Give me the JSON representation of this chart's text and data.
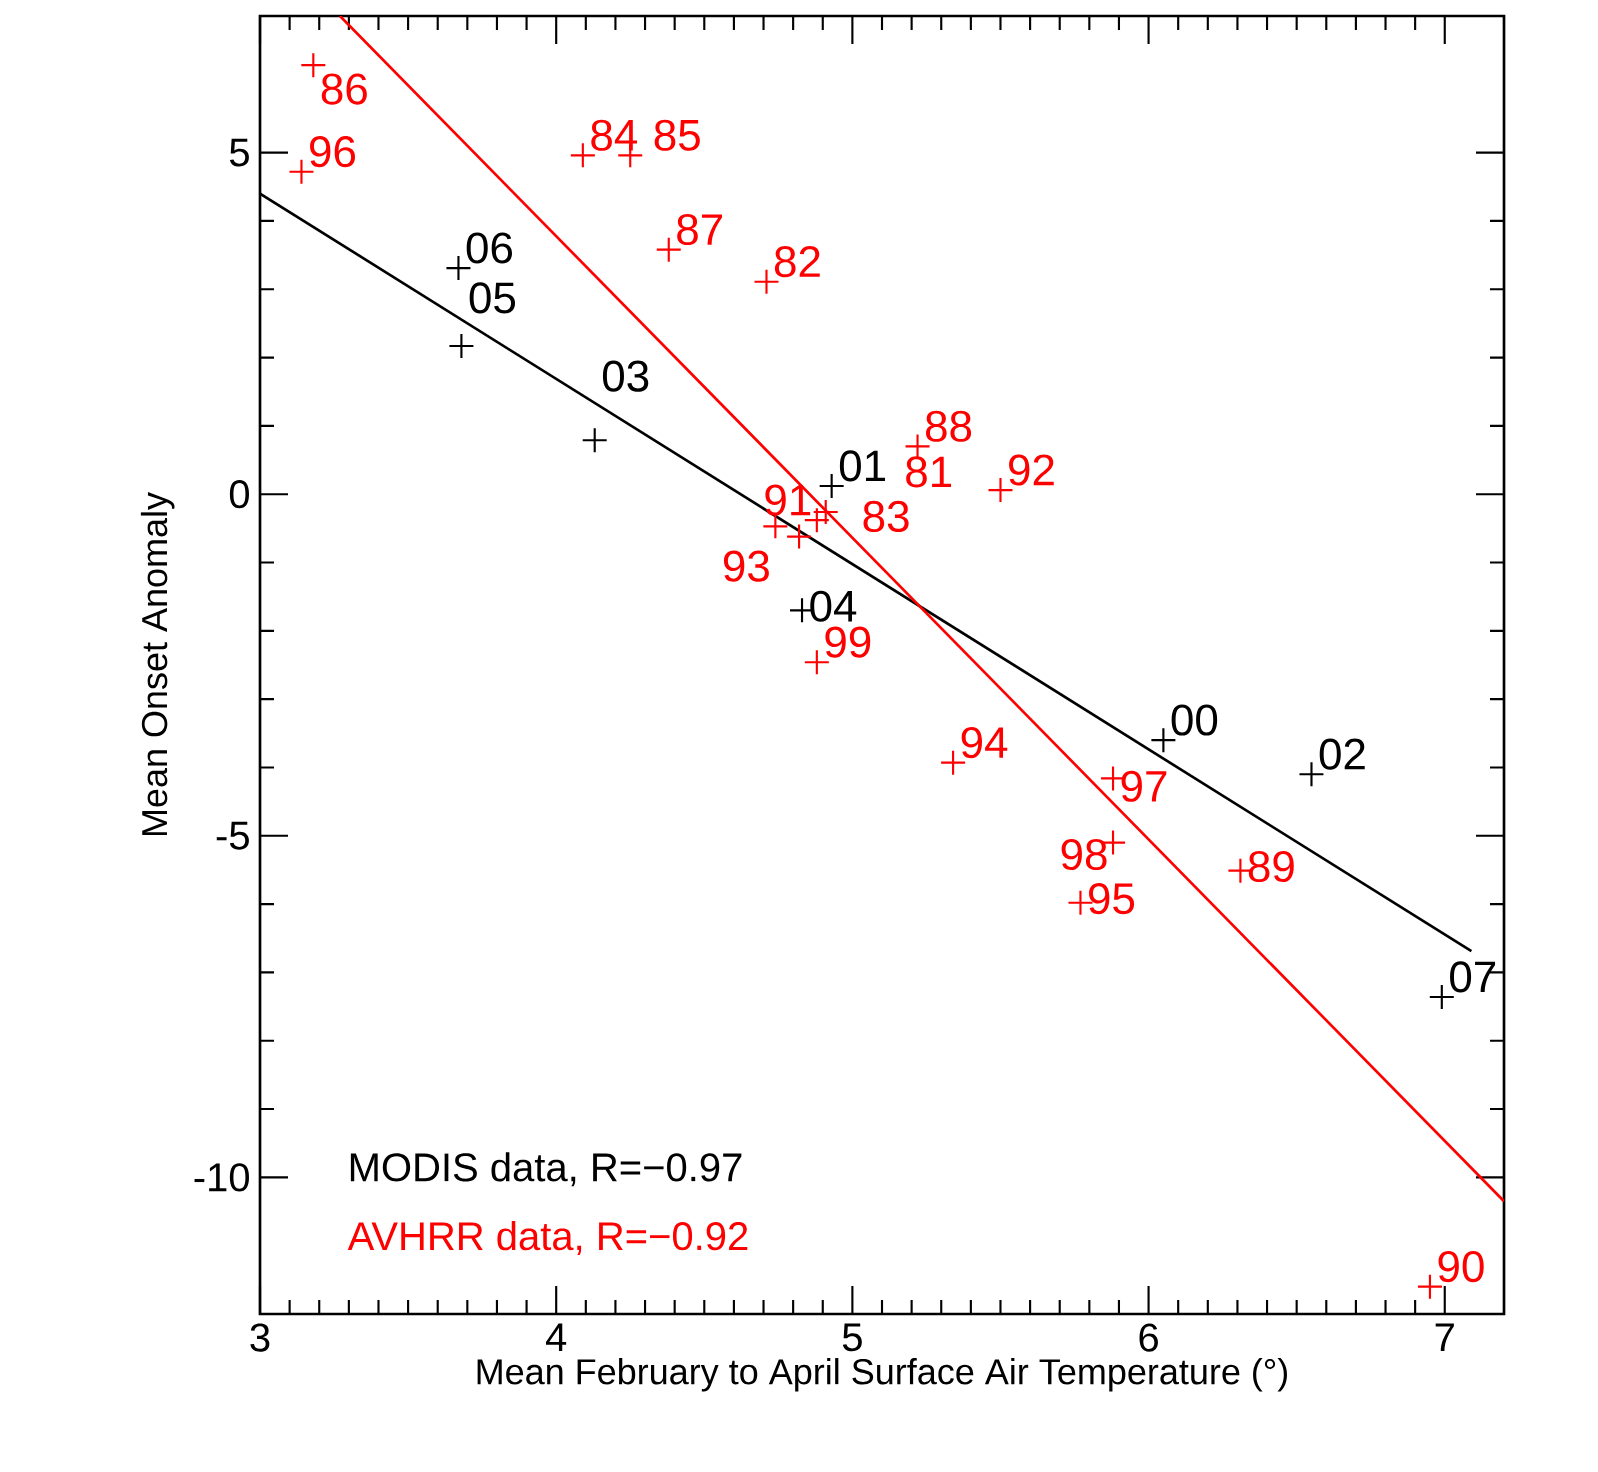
{
  "chart_data": {
    "type": "scatter",
    "xlabel": "Mean February to April Surface Air Temperature (°)",
    "ylabel": "Mean Onset Anomaly",
    "xlim": [
      3,
      7.2
    ],
    "ylim": [
      -12,
      7
    ],
    "xticks": [
      3,
      4,
      5,
      6,
      7
    ],
    "yticks": [
      -10,
      -5,
      0,
      5
    ],
    "grid": false,
    "legend": "bottom left",
    "marker": "cross",
    "series": [
      {
        "name": "MODIS data, R=−0.97",
        "color": "#000000",
        "x": [
          3.67,
          3.68,
          4.13,
          4.93,
          4.83,
          6.05,
          6.55,
          6.99
        ],
        "values": [
          3.31,
          2.17,
          0.79,
          0.12,
          -1.7,
          -3.6,
          -4.1,
          -7.36
        ]
      },
      {
        "name": "AVHRR data, R=−0.92",
        "color": "#ff0000",
        "x": [
          3.18,
          3.14,
          4.09,
          4.25,
          4.38,
          4.71,
          5.22,
          5.5,
          4.74,
          4.82,
          4.88,
          4.91,
          4.88,
          5.34,
          5.88,
          5.88,
          5.77,
          6.31,
          6.95
        ],
        "values": [
          6.28,
          4.72,
          4.96,
          4.96,
          3.58,
          3.11,
          0.7,
          0.06,
          -0.47,
          -0.62,
          -0.38,
          -0.26,
          -2.46,
          -3.93,
          -4.16,
          -5.1,
          -5.98,
          -5.51,
          -11.6
        ]
      },
      {
        "color": "#000000",
        "type": "line",
        "marker": "none",
        "line_style": "solid",
        "x": [
          3,
          7.09
        ],
        "values": [
          4.4,
          -6.69
        ]
      },
      {
        "color": "#ff0000",
        "type": "line",
        "marker": "none",
        "line_style": "solid",
        "x": [
          3.27,
          7.2
        ],
        "values": [
          7.0,
          -10.35
        ]
      }
    ],
    "annotations": [
      {
        "text": "06",
        "x": 3.67,
        "y": 3.31
      },
      {
        "text": "05",
        "x": 3.68,
        "y": 2.17
      },
      {
        "text": "03",
        "x": 4.13,
        "y": 0.79
      },
      {
        "text": "01",
        "x": 4.93,
        "y": 0.12
      },
      {
        "text": "04",
        "x": 4.83,
        "y": -1.7
      },
      {
        "text": "00",
        "x": 6.05,
        "y": -3.6
      },
      {
        "text": "02",
        "x": 6.55,
        "y": -4.1
      },
      {
        "text": "07",
        "x": 6.99,
        "y": -7.36
      },
      {
        "text": "86",
        "x": 3.18,
        "y": 6.28
      },
      {
        "text": "96",
        "x": 3.14,
        "y": 4.72
      },
      {
        "text": "84",
        "x": 4.09,
        "y": 4.96
      },
      {
        "text": "85",
        "x": 4.25,
        "y": 4.96
      },
      {
        "text": "87",
        "x": 4.38,
        "y": 3.58
      },
      {
        "text": "82",
        "x": 4.71,
        "y": 3.11
      },
      {
        "text": "88",
        "x": 5.22,
        "y": 0.7
      },
      {
        "text": "92",
        "x": 5.5,
        "y": 0.06
      },
      {
        "text": "93",
        "x": 4.74,
        "y": -0.47
      },
      {
        "text": "83",
        "x": 4.82,
        "y": -0.62
      },
      {
        "text": "91",
        "x": 4.88,
        "y": -0.38
      },
      {
        "text": "81",
        "x": 4.91,
        "y": -0.26
      },
      {
        "text": "99",
        "x": 4.88,
        "y": -2.46
      },
      {
        "text": "94",
        "x": 5.34,
        "y": -3.93
      },
      {
        "text": "97",
        "x": 5.88,
        "y": -4.16
      },
      {
        "text": "98",
        "x": 5.88,
        "y": -5.1
      },
      {
        "text": "95",
        "x": 5.77,
        "y": -5.98
      },
      {
        "text": "89",
        "x": 6.31,
        "y": -5.51
      },
      {
        "text": "90",
        "x": 6.95,
        "y": -11.6
      }
    ]
  }
}
